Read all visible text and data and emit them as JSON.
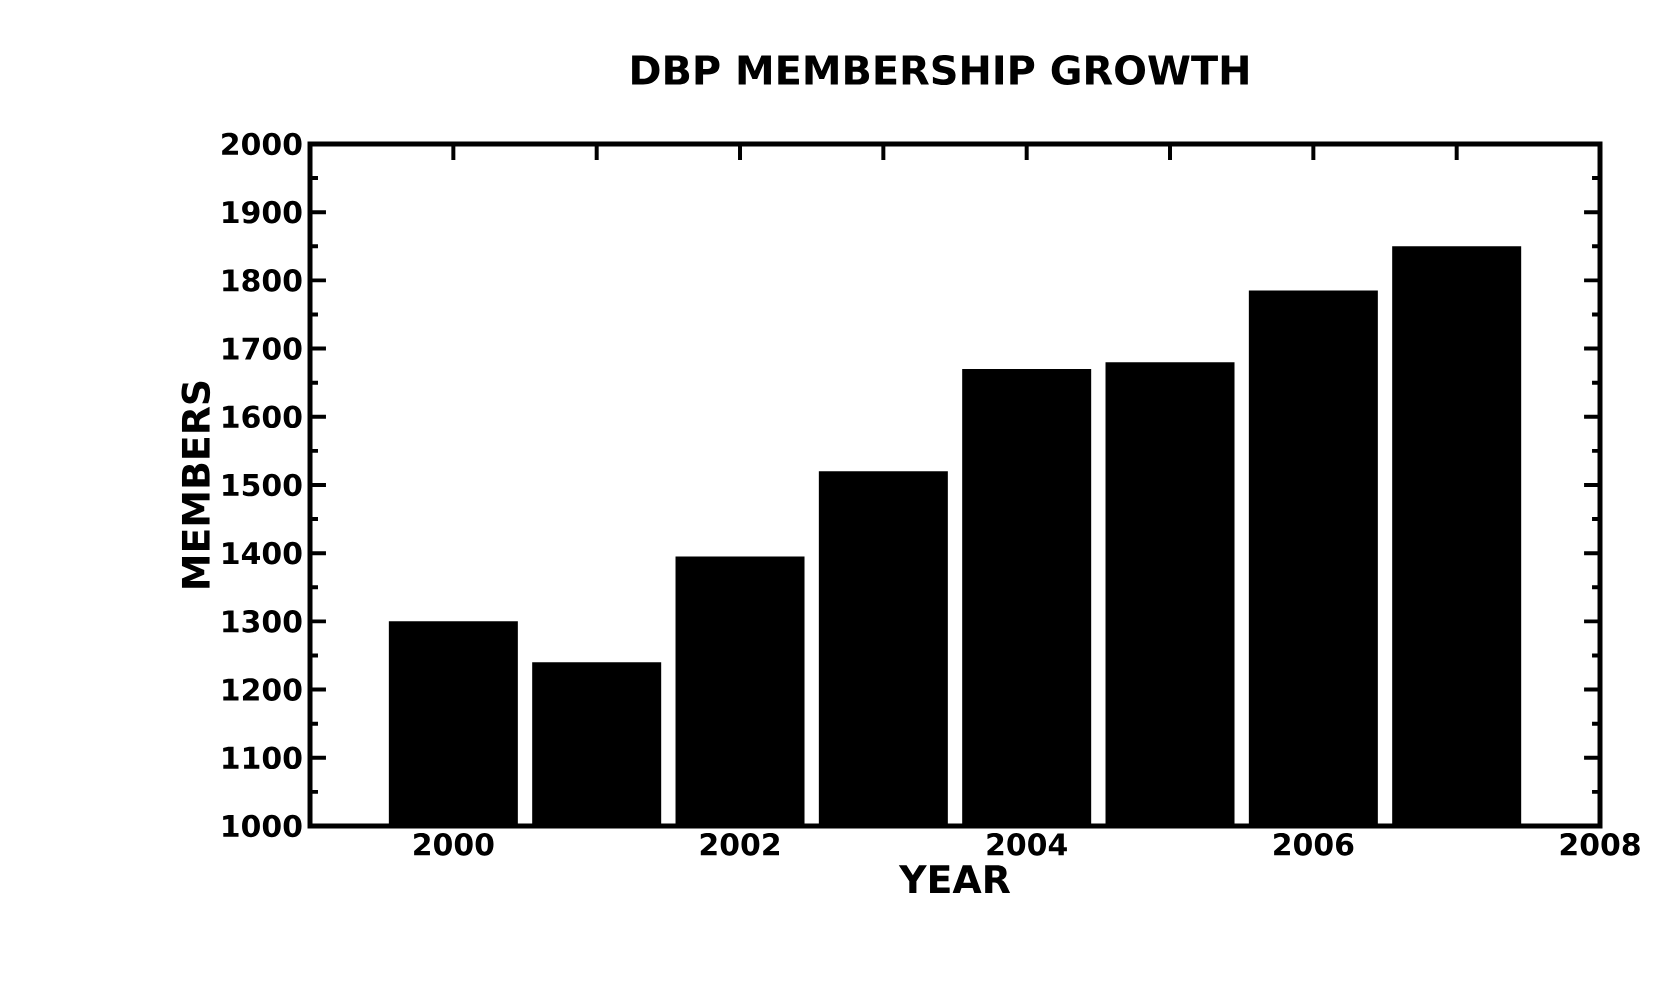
{
  "chart_data": {
    "type": "bar",
    "title": "DBP MEMBERSHIP GROWTH",
    "xlabel": "YEAR",
    "ylabel": "MEMBERS",
    "x": [
      2000,
      2001,
      2002,
      2003,
      2004,
      2005,
      2006,
      2007
    ],
    "values": [
      1300,
      1240,
      1395,
      1520,
      1670,
      1680,
      1785,
      1850
    ],
    "color": "#000000",
    "xlim": [
      1999,
      2008
    ],
    "xticks": [
      2000,
      {
        "value": 2001,
        "label": null
      },
      2002,
      {
        "value": 2003,
        "label": null
      },
      2004,
      {
        "value": 2005,
        "label": null
      },
      2006,
      {
        "value": 2007,
        "label": null
      },
      2008
    ],
    "ylim": [
      1000,
      2000
    ],
    "yticks": [
      1000,
      1100,
      1200,
      1300,
      1400,
      1500,
      1600,
      1700,
      1800,
      1900,
      2000
    ]
  }
}
